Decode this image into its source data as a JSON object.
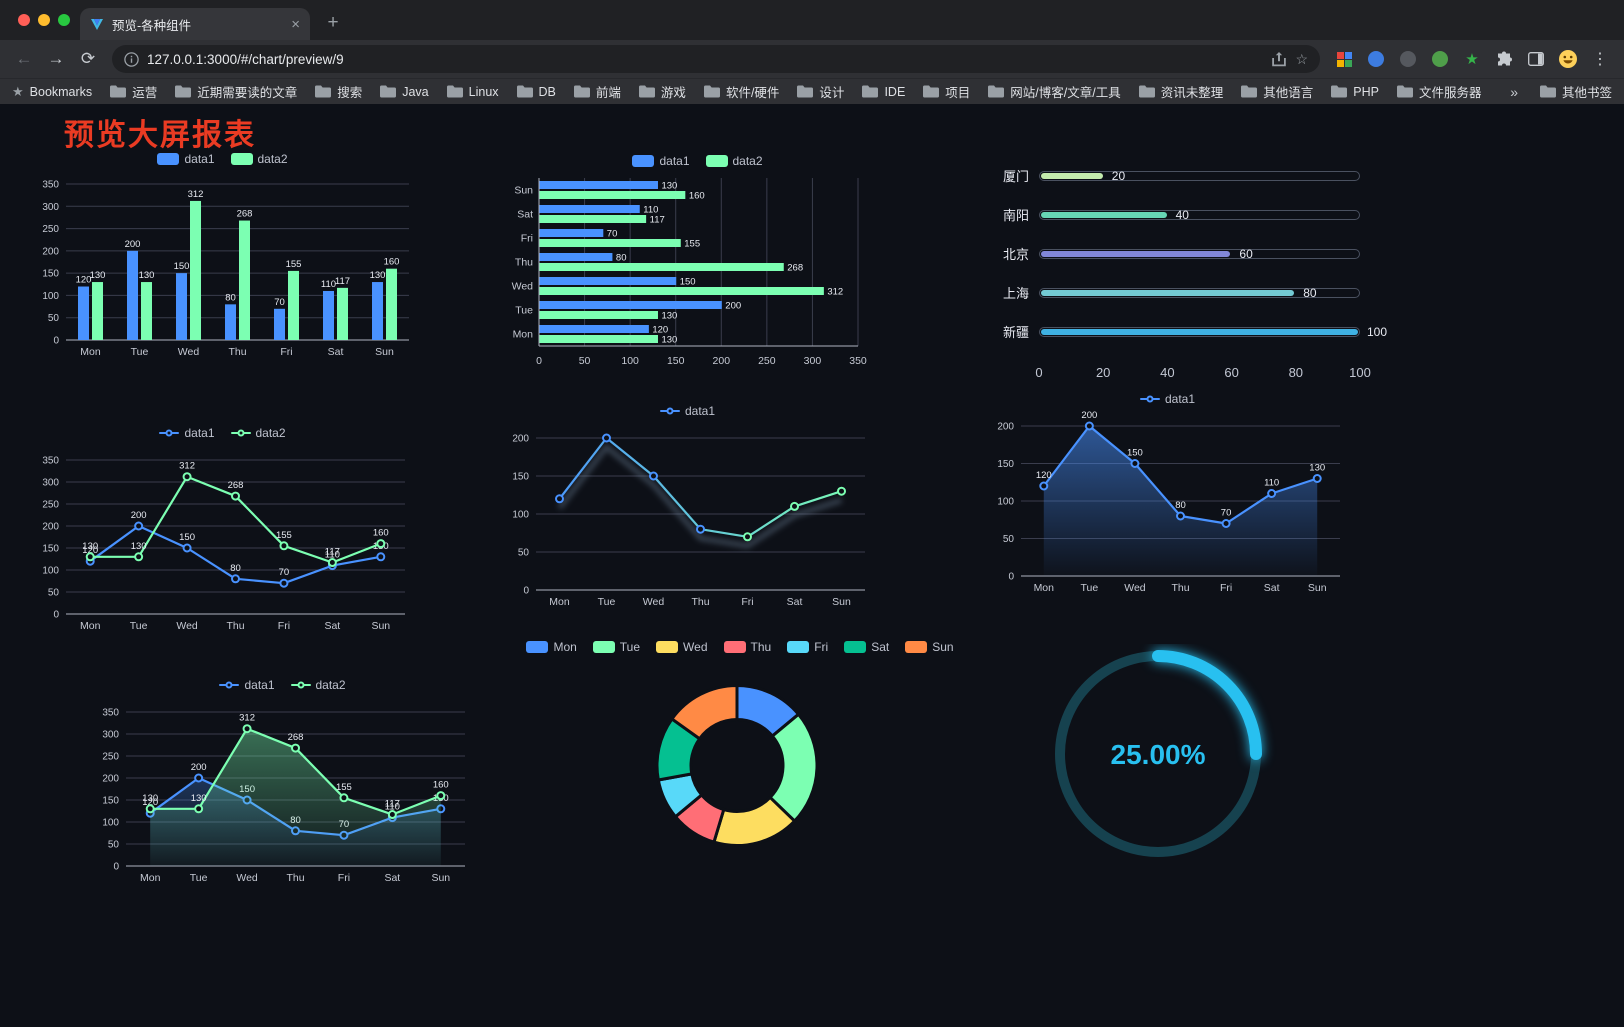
{
  "browser": {
    "tab_title": "预览-各种组件",
    "url": "127.0.0.1:3000/#/chart/preview/9",
    "bookmarks_label": "Bookmarks",
    "bookmarks": [
      "运营",
      "近期需要读的文章",
      "搜索",
      "Java",
      "Linux",
      "DB",
      "前端",
      "游戏",
      "软件/硬件",
      "设计",
      "IDE",
      "项目",
      "网站/博客/文章/工具",
      "资讯未整理",
      "其他语言",
      "PHP",
      "文件服务器"
    ],
    "bookmarks_overflow": "»",
    "other_bookmarks": "其他书签"
  },
  "page": {
    "title": "预览大屏报表",
    "title_color": "#ea3b23"
  },
  "chart_data": [
    {
      "id": "bar-vertical",
      "type": "bar",
      "categories": [
        "Mon",
        "Tue",
        "Wed",
        "Thu",
        "Fri",
        "Sat",
        "Sun"
      ],
      "series": [
        {
          "name": "data1",
          "color": "#4992ff",
          "values": [
            120,
            200,
            150,
            80,
            70,
            110,
            130
          ]
        },
        {
          "name": "data2",
          "color": "#7cffb2",
          "values": [
            130,
            130,
            312,
            268,
            155,
            117,
            160
          ]
        }
      ],
      "ylim": [
        0,
        350
      ],
      "yticks": [
        0,
        50,
        100,
        150,
        200,
        250,
        300,
        350
      ],
      "grid": true,
      "value_labels": true,
      "legend_position": "top"
    },
    {
      "id": "bar-horizontal",
      "type": "hbar",
      "categories": [
        "Mon",
        "Tue",
        "Wed",
        "Thu",
        "Fri",
        "Sat",
        "Sun"
      ],
      "series": [
        {
          "name": "data1",
          "color": "#4992ff",
          "values": [
            120,
            200,
            150,
            80,
            70,
            110,
            130
          ]
        },
        {
          "name": "data2",
          "color": "#7cffb2",
          "values": [
            130,
            130,
            312,
            268,
            155,
            117,
            160
          ]
        }
      ],
      "xlim": [
        0,
        350
      ],
      "xticks": [
        0,
        50,
        100,
        150,
        200,
        250,
        300,
        350
      ],
      "grid": true,
      "value_labels": true,
      "legend_position": "top"
    },
    {
      "id": "city-progress",
      "type": "progress-bars",
      "max": 100,
      "xticks": [
        0,
        20,
        40,
        60,
        80,
        100
      ],
      "items": [
        {
          "label": "厦门",
          "value": 20,
          "color": "#c4ebad"
        },
        {
          "label": "南阳",
          "value": 40,
          "color": "#67d5b5"
        },
        {
          "label": "北京",
          "value": 60,
          "color": "#8187d8"
        },
        {
          "label": "上海",
          "value": 80,
          "color": "#74cbd4"
        },
        {
          "label": "新疆",
          "value": 100,
          "color": "#3fb1e3"
        }
      ]
    },
    {
      "id": "line-two-series",
      "type": "line",
      "categories": [
        "Mon",
        "Tue",
        "Wed",
        "Thu",
        "Fri",
        "Sat",
        "Sun"
      ],
      "series": [
        {
          "name": "data1",
          "color": "#4992ff",
          "values": [
            120,
            200,
            150,
            80,
            70,
            110,
            130
          ]
        },
        {
          "name": "data2",
          "color": "#7cffb2",
          "values": [
            130,
            130,
            312,
            268,
            155,
            117,
            160
          ]
        }
      ],
      "ylim": [
        0,
        350
      ],
      "yticks": [
        0,
        50,
        100,
        150,
        200,
        250,
        300,
        350
      ],
      "grid": true,
      "value_labels": true,
      "legend_position": "top"
    },
    {
      "id": "line-gradient",
      "type": "line",
      "categories": [
        "Mon",
        "Tue",
        "Wed",
        "Thu",
        "Fri",
        "Sat",
        "Sun"
      ],
      "series": [
        {
          "name": "data1",
          "color": "#4992ff",
          "color_gradient": [
            "#4992ff",
            "#7cffb2"
          ],
          "shadow": true,
          "values": [
            120,
            200,
            150,
            80,
            70,
            110,
            130
          ]
        }
      ],
      "ylim": [
        0,
        200
      ],
      "yticks": [
        0,
        50,
        100,
        150,
        200
      ],
      "grid": true,
      "value_labels": false,
      "legend_position": "top"
    },
    {
      "id": "area-single",
      "type": "area",
      "categories": [
        "Mon",
        "Tue",
        "Wed",
        "Thu",
        "Fri",
        "Sat",
        "Sun"
      ],
      "series": [
        {
          "name": "data1",
          "color": "#4992ff",
          "area": [
            "rgba(73,146,255,0.55)",
            "rgba(73,146,255,0.02)"
          ],
          "values": [
            120,
            200,
            150,
            80,
            70,
            110,
            130
          ]
        }
      ],
      "ylim": [
        0,
        200
      ],
      "yticks": [
        0,
        50,
        100,
        150,
        200
      ],
      "grid": true,
      "value_labels": true,
      "legend_position": "top"
    },
    {
      "id": "line-area-two-series",
      "type": "line",
      "categories": [
        "Mon",
        "Tue",
        "Wed",
        "Thu",
        "Fri",
        "Sat",
        "Sun"
      ],
      "series": [
        {
          "name": "data1",
          "color": "#4992ff",
          "area": [
            "rgba(73,146,255,0.28)",
            "rgba(73,146,255,0.02)"
          ],
          "values": [
            120,
            200,
            150,
            80,
            70,
            110,
            130
          ]
        },
        {
          "name": "data2",
          "color": "#7cffb2",
          "area": [
            "rgba(124,255,178,0.40)",
            "rgba(124,255,178,0.03)"
          ],
          "values": [
            130,
            130,
            312,
            268,
            155,
            117,
            160
          ]
        }
      ],
      "ylim": [
        0,
        350
      ],
      "yticks": [
        0,
        50,
        100,
        150,
        200,
        250,
        300,
        350
      ],
      "grid": true,
      "value_labels": true,
      "legend_position": "top"
    },
    {
      "id": "donut",
      "type": "pie",
      "inner_radius": 46,
      "outer_radius": 80,
      "legend_position": "top",
      "items": [
        {
          "label": "Mon",
          "value": 120,
          "color": "#4992ff"
        },
        {
          "label": "Tue",
          "value": 200,
          "color": "#7cffb2"
        },
        {
          "label": "Wed",
          "value": 150,
          "color": "#fddd60"
        },
        {
          "label": "Thu",
          "value": 80,
          "color": "#ff6e76"
        },
        {
          "label": "Fri",
          "value": 70,
          "color": "#58d9f9"
        },
        {
          "label": "Sat",
          "value": 110,
          "color": "#05c091"
        },
        {
          "label": "Sun",
          "value": 130,
          "color": "#ff8a45"
        }
      ]
    },
    {
      "id": "gauge",
      "type": "gauge",
      "value": 25,
      "label": "25.00%",
      "color": "#28c0f0",
      "track_color": "#16424f"
    }
  ]
}
